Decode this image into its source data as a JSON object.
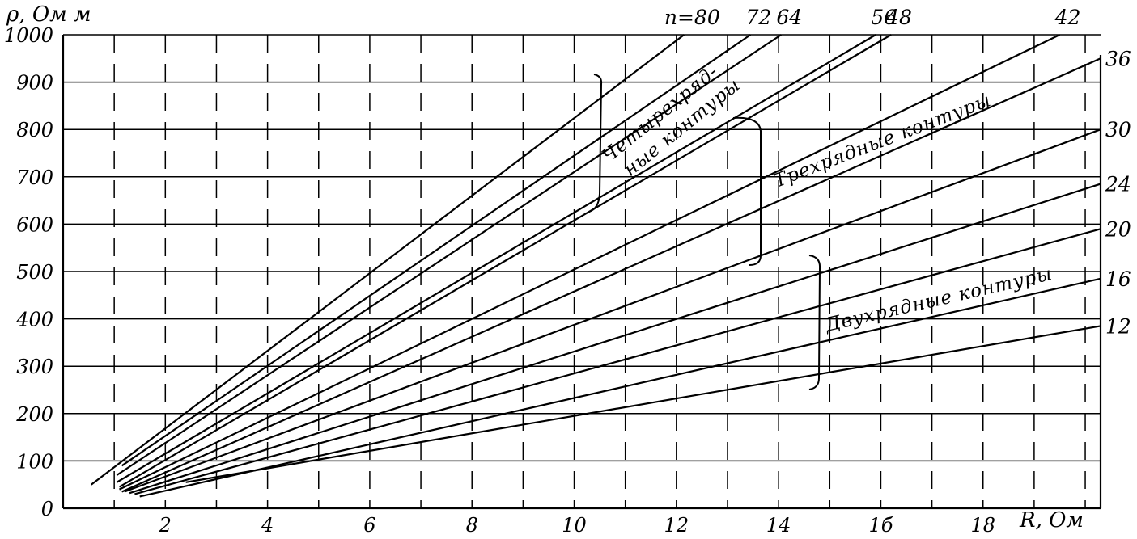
{
  "chart_data": {
    "type": "line",
    "title": "",
    "ylabel": "ρ, Ом м",
    "xlabel": "R, Ом",
    "xlim": [
      0,
      20.3
    ],
    "ylim": [
      0,
      1000
    ],
    "x_ticks": [
      2,
      4,
      6,
      8,
      10,
      12,
      14,
      16,
      18
    ],
    "x_tick_labels": [
      "2",
      "4",
      "6",
      "8",
      "10",
      "12",
      "14",
      "1б",
      "18"
    ],
    "y_ticks": [
      0,
      100,
      200,
      300,
      400,
      500,
      600,
      700,
      800,
      900,
      1000
    ],
    "y_tick_labels": [
      "0",
      "100",
      "200",
      "300",
      "400",
      "500",
      "600",
      "700",
      "800",
      "900",
      "1000"
    ],
    "grid": true,
    "series": [
      {
        "name": "n=80",
        "x": [
          0.55,
          12.15
        ],
        "y": [
          50,
          1000
        ]
      },
      {
        "name": "72",
        "x": [
          1.15,
          13.45
        ],
        "y": [
          90,
          1000
        ]
      },
      {
        "name": "64",
        "x": [
          1.05,
          14.05
        ],
        "y": [
          70,
          1000
        ]
      },
      {
        "name": "56",
        "x": [
          1.05,
          15.9
        ],
        "y": [
          55,
          1000
        ]
      },
      {
        "name": "48",
        "x": [
          1.1,
          16.2
        ],
        "y": [
          45,
          1000
        ]
      },
      {
        "name": "42",
        "x": [
          1.1,
          19.5
        ],
        "y": [
          40,
          1000
        ]
      },
      {
        "name": "36",
        "x": [
          1.15,
          20.3
        ],
        "y": [
          35,
          950
        ]
      },
      {
        "name": "30",
        "x": [
          1.2,
          20.3
        ],
        "y": [
          35,
          800
        ]
      },
      {
        "name": "24",
        "x": [
          1.3,
          20.3
        ],
        "y": [
          32,
          685
        ]
      },
      {
        "name": "20",
        "x": [
          1.4,
          20.3
        ],
        "y": [
          30,
          590
        ]
      },
      {
        "name": "16",
        "x": [
          1.5,
          20.3
        ],
        "y": [
          25,
          485
        ]
      },
      {
        "name": "12",
        "x": [
          2.4,
          20.3
        ],
        "y": [
          55,
          385
        ]
      }
    ],
    "annotations": {
      "n_prefix": "n=80",
      "group_four": [
        "Четырехряд-",
        "ные контуры"
      ],
      "group_three": "Трехрядные контуры",
      "group_two": "Двухрядные контуры"
    }
  }
}
